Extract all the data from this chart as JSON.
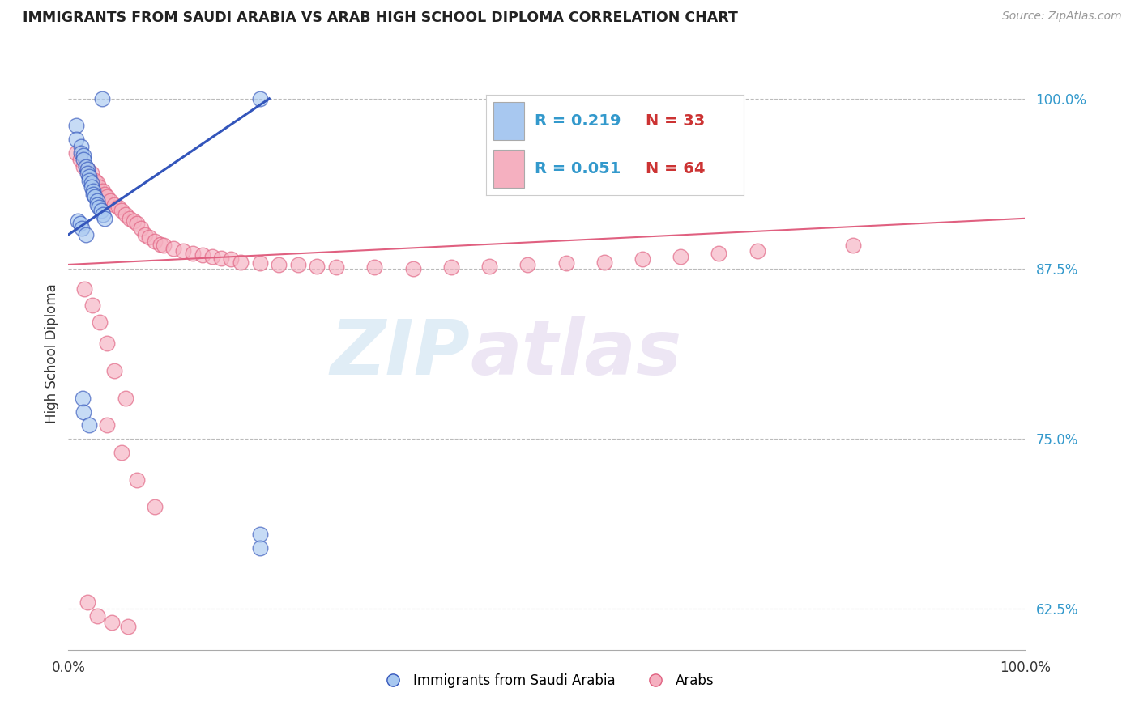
{
  "title": "IMMIGRANTS FROM SAUDI ARABIA VS ARAB HIGH SCHOOL DIPLOMA CORRELATION CHART",
  "source": "Source: ZipAtlas.com",
  "ylabel": "High School Diploma",
  "xlim": [
    0.0,
    1.0
  ],
  "ylim": [
    0.595,
    1.03
  ],
  "yticks": [
    0.625,
    0.75,
    0.875,
    1.0
  ],
  "ytick_labels": [
    "62.5%",
    "75.0%",
    "87.5%",
    "100.0%"
  ],
  "legend_r1_val": "0.219",
  "legend_n1_val": "33",
  "legend_r2_val": "0.051",
  "legend_n2_val": "64",
  "blue_color": "#a8c8f0",
  "pink_color": "#f5b0c0",
  "line_blue": "#3355bb",
  "line_pink": "#e06080",
  "label_blue": "Immigrants from Saudi Arabia",
  "label_pink": "Arabs",
  "watermark_zip": "ZIP",
  "watermark_atlas": "atlas",
  "blue_scatter_x": [
    0.035,
    0.008,
    0.008,
    0.013,
    0.013,
    0.016,
    0.016,
    0.018,
    0.02,
    0.02,
    0.022,
    0.022,
    0.024,
    0.024,
    0.026,
    0.026,
    0.028,
    0.03,
    0.03,
    0.032,
    0.034,
    0.036,
    0.038,
    0.01,
    0.012,
    0.014,
    0.018,
    0.2,
    0.015,
    0.016,
    0.022,
    0.2,
    0.2
  ],
  "blue_scatter_y": [
    1.0,
    0.98,
    0.97,
    0.965,
    0.96,
    0.958,
    0.955,
    0.95,
    0.948,
    0.945,
    0.943,
    0.94,
    0.938,
    0.935,
    0.932,
    0.93,
    0.928,
    0.925,
    0.922,
    0.92,
    0.918,
    0.915,
    0.912,
    0.91,
    0.908,
    0.905,
    0.9,
    1.0,
    0.78,
    0.77,
    0.76,
    0.68,
    0.67
  ],
  "pink_scatter_x": [
    0.008,
    0.012,
    0.016,
    0.02,
    0.024,
    0.028,
    0.03,
    0.032,
    0.036,
    0.038,
    0.04,
    0.044,
    0.048,
    0.052,
    0.056,
    0.06,
    0.064,
    0.068,
    0.072,
    0.076,
    0.08,
    0.084,
    0.09,
    0.096,
    0.1,
    0.11,
    0.12,
    0.13,
    0.14,
    0.15,
    0.16,
    0.17,
    0.18,
    0.2,
    0.22,
    0.24,
    0.26,
    0.28,
    0.32,
    0.36,
    0.4,
    0.44,
    0.48,
    0.52,
    0.56,
    0.6,
    0.64,
    0.68,
    0.72,
    0.82,
    0.017,
    0.025,
    0.033,
    0.04,
    0.048,
    0.06,
    0.04,
    0.056,
    0.072,
    0.09,
    0.02,
    0.03,
    0.045,
    0.062
  ],
  "pink_scatter_y": [
    0.96,
    0.955,
    0.95,
    0.948,
    0.945,
    0.94,
    0.938,
    0.935,
    0.932,
    0.93,
    0.928,
    0.925,
    0.922,
    0.92,
    0.918,
    0.915,
    0.912,
    0.91,
    0.908,
    0.905,
    0.9,
    0.898,
    0.895,
    0.893,
    0.892,
    0.89,
    0.888,
    0.886,
    0.885,
    0.884,
    0.883,
    0.882,
    0.88,
    0.879,
    0.878,
    0.878,
    0.877,
    0.876,
    0.876,
    0.875,
    0.876,
    0.877,
    0.878,
    0.879,
    0.88,
    0.882,
    0.884,
    0.886,
    0.888,
    0.892,
    0.86,
    0.848,
    0.836,
    0.82,
    0.8,
    0.78,
    0.76,
    0.74,
    0.72,
    0.7,
    0.63,
    0.62,
    0.615,
    0.612
  ],
  "blue_line_x0": 0.0,
  "blue_line_x1": 0.21,
  "blue_line_y0": 0.9,
  "blue_line_y1": 1.0,
  "pink_line_x0": 0.0,
  "pink_line_x1": 1.0,
  "pink_line_y0": 0.878,
  "pink_line_y1": 0.912
}
